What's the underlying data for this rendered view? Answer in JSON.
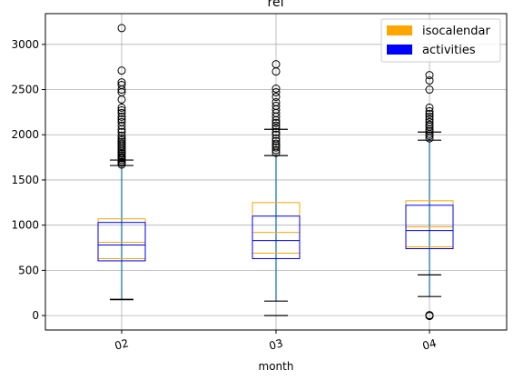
{
  "chart_data": {
    "type": "box",
    "title": "ref",
    "xlabel": "month",
    "ylabel": "",
    "categories": [
      "02",
      "03",
      "04"
    ],
    "ylim": [
      -160,
      3340
    ],
    "yticks": [
      0,
      500,
      1000,
      1500,
      2000,
      2500,
      3000
    ],
    "grid": true,
    "legend_position": "top-right",
    "series": [
      {
        "name": "isocalendar",
        "color": "#ffa500",
        "boxes": [
          {
            "q1": 630,
            "median": 810,
            "q3": 1070
          },
          {
            "q1": 690,
            "median": 920,
            "q3": 1250
          },
          {
            "q1": 760,
            "median": 980,
            "q3": 1270
          }
        ]
      },
      {
        "name": "activities",
        "color": "#0000ff",
        "boxes": [
          {
            "q1": 605,
            "median": 780,
            "q3": 1030
          },
          {
            "q1": 630,
            "median": 830,
            "q3": 1100
          },
          {
            "q1": 740,
            "median": 940,
            "q3": 1220
          }
        ]
      }
    ],
    "whiskers": [
      {
        "low": 180,
        "high": 1660,
        "caps_low": [
          175,
          180
        ],
        "caps_high": [
          1660,
          1720
        ]
      },
      {
        "low": 160,
        "high": 1770,
        "caps_low": [
          0,
          160
        ],
        "caps_high": [
          1770,
          2060
        ]
      },
      {
        "low": 210,
        "high": 1940,
        "caps_low": [
          210,
          450
        ],
        "caps_high": [
          1940,
          2030
        ]
      }
    ],
    "outliers": [
      [
        1670,
        1690,
        1700,
        1720,
        1740,
        1750,
        1770,
        1790,
        1800,
        1820,
        1840,
        1860,
        1880,
        1900,
        1920,
        1940,
        1960,
        1990,
        2030,
        2060,
        2100,
        2140,
        2170,
        2200,
        2240,
        2270,
        2300,
        2390,
        2470,
        2500,
        2550,
        2580,
        2710,
        3180
      ],
      [
        1800,
        1830,
        1860,
        1880,
        1900,
        1930,
        1960,
        2000,
        2030,
        2070,
        2100,
        2130,
        2160,
        2200,
        2240,
        2280,
        2320,
        2360,
        2420,
        2470,
        2510,
        2700,
        2780
      ],
      [
        -5,
        0,
        5,
        1960,
        1990,
        2010,
        2040,
        2060,
        2090,
        2110,
        2140,
        2170,
        2200,
        2230,
        2260,
        2300,
        2500,
        2600,
        2660
      ]
    ]
  }
}
